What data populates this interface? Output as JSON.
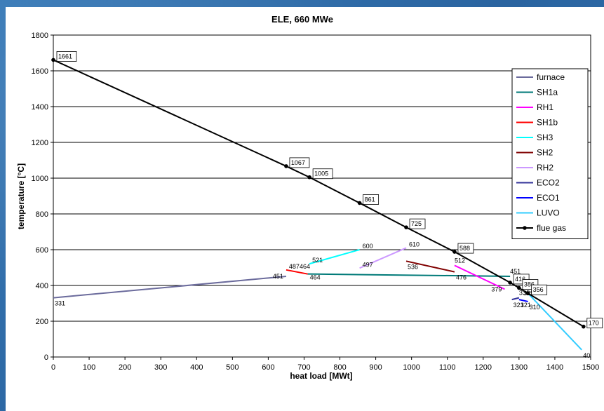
{
  "chart_data": {
    "type": "line",
    "title": "ELE, 660 MWe",
    "xlabel": "heat load [MWt]",
    "ylabel": "temperature [°C]",
    "xlim": [
      0,
      1500
    ],
    "ylim": [
      0,
      1800
    ],
    "x_ticks": [
      0,
      100,
      200,
      300,
      400,
      500,
      600,
      700,
      800,
      900,
      1000,
      1100,
      1200,
      1300,
      1400,
      1500
    ],
    "y_ticks": [
      0,
      200,
      400,
      600,
      800,
      1000,
      1200,
      1400,
      1600,
      1800
    ],
    "grid": "horizontal",
    "legend_position": "right",
    "series": [
      {
        "name": "furnace",
        "color": "#6b6b9c",
        "markers": false,
        "points": [
          [
            0,
            331
          ],
          [
            650,
            451
          ]
        ],
        "labels": [
          {
            "text": "331",
            "at": [
              0,
              331
            ],
            "pos": "below"
          },
          {
            "text": "451",
            "at": [
              650,
              451
            ],
            "pos": "left"
          }
        ]
      },
      {
        "name": "SH1a",
        "color": "#007a78",
        "markers": false,
        "points": [
          [
            710,
            464
          ],
          [
            1275,
            451
          ]
        ],
        "labels": [
          {
            "text": "464",
            "at": [
              710,
              464
            ],
            "pos": "right-below"
          },
          {
            "text": "451",
            "at": [
              1275,
              451
            ],
            "pos": "above"
          }
        ]
      },
      {
        "name": "RH1",
        "color": "#ff00ff",
        "markers": false,
        "points": [
          [
            1120,
            512
          ],
          [
            1260,
            379
          ]
        ],
        "labels": [
          {
            "text": "512",
            "at": [
              1120,
              512
            ],
            "pos": "above"
          },
          {
            "text": "379",
            "at": [
              1260,
              379
            ],
            "pos": "left"
          }
        ]
      },
      {
        "name": "SH1b",
        "color": "#ff0000",
        "markers": false,
        "points": [
          [
            650,
            487
          ],
          [
            710,
            464
          ]
        ],
        "labels": [
          {
            "text": "487464",
            "at": [
              650,
              487
            ],
            "pos": "right"
          }
        ]
      },
      {
        "name": "SH3",
        "color": "#00ffff",
        "markers": false,
        "points": [
          [
            715,
            521
          ],
          [
            855,
            600
          ]
        ],
        "labels": [
          {
            "text": "521",
            "at": [
              715,
              521
            ],
            "pos": "right"
          },
          {
            "text": "600",
            "at": [
              855,
              600
            ],
            "pos": "right"
          }
        ]
      },
      {
        "name": "SH2",
        "color": "#800000",
        "markers": false,
        "points": [
          [
            985,
            536
          ],
          [
            1120,
            476
          ]
        ],
        "labels": [
          {
            "text": "536",
            "at": [
              985,
              536
            ],
            "pos": "below"
          },
          {
            "text": "476",
            "at": [
              1120,
              476
            ],
            "pos": "below"
          }
        ]
      },
      {
        "name": "RH2",
        "color": "#cc99ff",
        "markers": false,
        "points": [
          [
            855,
            497
          ],
          [
            985,
            610
          ]
        ],
        "labels": [
          {
            "text": "497",
            "at": [
              855,
              497
            ],
            "pos": "right"
          },
          {
            "text": "610",
            "at": [
              985,
              610
            ],
            "pos": "right"
          }
        ]
      },
      {
        "name": "ECO2",
        "color": "#333399",
        "markers": false,
        "points": [
          [
            1280,
            321
          ],
          [
            1300,
            331
          ]
        ],
        "labels": [
          {
            "text": "321",
            "at": [
              1280,
              321
            ],
            "pos": "below"
          },
          {
            "text": "331",
            "at": [
              1300,
              331
            ],
            "pos": "above"
          }
        ]
      },
      {
        "name": "ECO1",
        "color": "#0000ff",
        "markers": false,
        "points": [
          [
            1300,
            321
          ],
          [
            1325,
            310
          ]
        ],
        "labels": [
          {
            "text": "321",
            "at": [
              1300,
              321
            ],
            "pos": "below"
          },
          {
            "text": "310",
            "at": [
              1325,
              310
            ],
            "pos": "below"
          },
          {
            "text": "329",
            "at": [
              1312,
              329
            ],
            "pos": "above"
          }
        ]
      },
      {
        "name": "LUVO",
        "color": "#33ccff",
        "markers": false,
        "points": [
          [
            1325,
            356
          ],
          [
            1475,
            40
          ]
        ],
        "labels": [
          {
            "text": "40",
            "at": [
              1475,
              40
            ],
            "pos": "below"
          }
        ]
      },
      {
        "name": "flue gas",
        "color": "#000000",
        "markers": true,
        "points": [
          [
            0,
            1661
          ],
          [
            650,
            1067
          ],
          [
            715,
            1005
          ],
          [
            855,
            861
          ],
          [
            985,
            725
          ],
          [
            1120,
            588
          ],
          [
            1275,
            416
          ],
          [
            1300,
            386
          ],
          [
            1325,
            356
          ],
          [
            1480,
            170
          ]
        ],
        "boxed_labels": [
          "1661",
          "1067",
          "1005",
          "861",
          "725",
          "588",
          "416",
          "386",
          "356",
          "170"
        ]
      }
    ]
  }
}
